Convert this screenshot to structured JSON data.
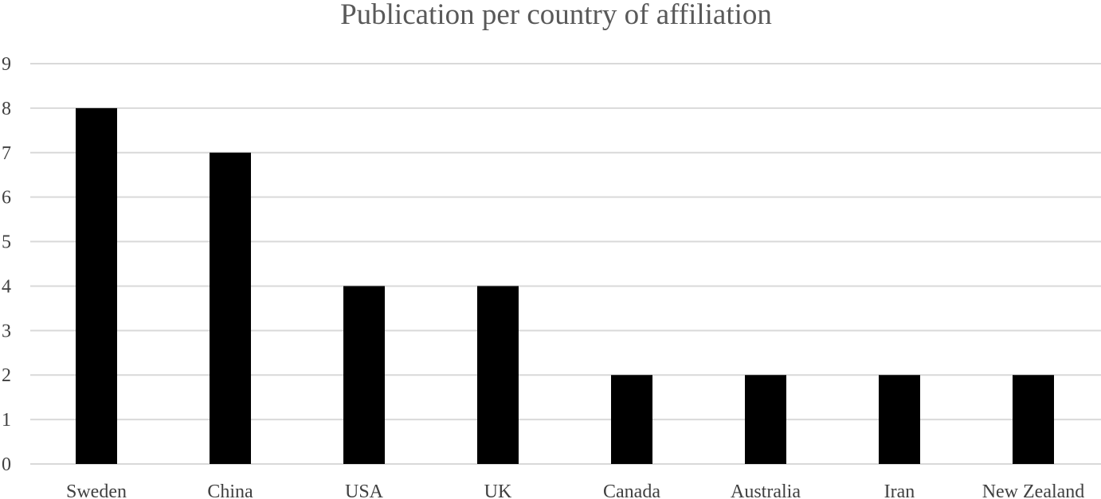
{
  "chart_data": {
    "type": "bar",
    "title": "Publication per country of affiliation",
    "xlabel": "",
    "ylabel": "",
    "categories": [
      "Sweden",
      "China",
      "USA",
      "UK",
      "Canada",
      "Australia",
      "Iran",
      "New Zealand"
    ],
    "values": [
      8,
      7,
      4,
      4,
      2,
      2,
      2,
      2
    ],
    "ylim": [
      0,
      9
    ],
    "yticks": [
      0,
      1,
      2,
      3,
      4,
      5,
      6,
      7,
      8,
      9
    ],
    "grid": true,
    "legend": "none",
    "bar_color": "#000000",
    "grid_color": "#d9d9d9",
    "text_color": "#404040",
    "title_color": "#595959"
  }
}
